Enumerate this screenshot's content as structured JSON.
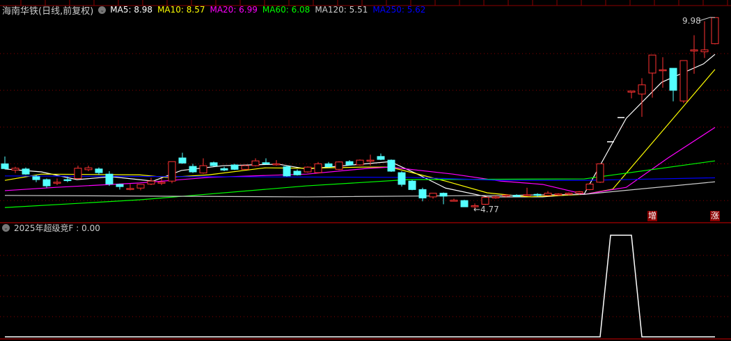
{
  "header": {
    "stock_name": "海南华铁(日线,前复权)",
    "ma": [
      {
        "label": "MA5: 8.98",
        "color": "#ffffff"
      },
      {
        "label": "MA10: 8.57",
        "color": "#ffff00"
      },
      {
        "label": "MA20: 6.99",
        "color": "#ff00ff"
      },
      {
        "label": "MA60: 6.08",
        "color": "#00ff00"
      },
      {
        "label": "MA120: 5.51",
        "color": "#cccccc"
      },
      {
        "label": "MA250: 5.62",
        "color": "#0000ff"
      }
    ]
  },
  "indicator": {
    "label": "2025年超级竞F : 0.00"
  },
  "markers": {
    "high_label": "9.98",
    "low_label": "←4.77",
    "tag_zeng": "增",
    "tag_zhang": "涨"
  },
  "colors": {
    "up": "#ff3232",
    "down": "#54ffff",
    "grid": "#8b0000",
    "flat": "#ffffff"
  },
  "chart_data": [
    {
      "type": "candlestick",
      "y_gridlines": [
        5,
        6,
        7,
        8,
        9
      ],
      "ohlc": [
        [
          6.0,
          6.2,
          5.85,
          5.87
        ],
        [
          5.83,
          5.92,
          5.75,
          5.88
        ],
        [
          5.86,
          5.9,
          5.7,
          5.72
        ],
        [
          5.65,
          5.7,
          5.5,
          5.57
        ],
        [
          5.57,
          5.6,
          5.35,
          5.4
        ],
        [
          5.5,
          5.6,
          5.42,
          5.5
        ],
        [
          5.57,
          5.65,
          5.5,
          5.56
        ],
        [
          5.6,
          5.95,
          5.58,
          5.88
        ],
        [
          5.84,
          5.95,
          5.8,
          5.89
        ],
        [
          5.86,
          5.9,
          5.7,
          5.76
        ],
        [
          5.72,
          5.8,
          5.4,
          5.45
        ],
        [
          5.44,
          5.46,
          5.3,
          5.38
        ],
        [
          5.31,
          5.45,
          5.28,
          5.33
        ],
        [
          5.34,
          5.45,
          5.28,
          5.44
        ],
        [
          5.45,
          5.62,
          5.42,
          5.53
        ],
        [
          5.5,
          5.6,
          5.42,
          5.5
        ],
        [
          5.53,
          6.06,
          5.47,
          6.06
        ],
        [
          6.16,
          6.3,
          6.0,
          6.02
        ],
        [
          5.93,
          6.0,
          5.75,
          5.78
        ],
        [
          5.75,
          6.15,
          5.73,
          5.95
        ],
        [
          6.03,
          6.06,
          5.93,
          5.95
        ],
        [
          5.87,
          5.92,
          5.8,
          5.83
        ],
        [
          5.97,
          6.0,
          5.83,
          5.85
        ],
        [
          5.85,
          5.97,
          5.83,
          5.95
        ],
        [
          5.95,
          6.15,
          5.93,
          6.08
        ],
        [
          6.03,
          6.15,
          5.98,
          6.0
        ],
        [
          6.0,
          6.1,
          5.95,
          6.0
        ],
        [
          5.92,
          5.95,
          5.65,
          5.67
        ],
        [
          5.8,
          5.85,
          5.68,
          5.7
        ],
        [
          5.78,
          5.93,
          5.76,
          5.91
        ],
        [
          5.76,
          6.05,
          5.74,
          6.0
        ],
        [
          6.0,
          6.05,
          5.9,
          5.92
        ],
        [
          5.85,
          6.07,
          5.83,
          6.05
        ],
        [
          6.06,
          6.1,
          5.95,
          5.97
        ],
        [
          5.97,
          6.12,
          5.95,
          6.1
        ],
        [
          6.09,
          6.25,
          5.95,
          6.1
        ],
        [
          6.2,
          6.28,
          6.1,
          6.12
        ],
        [
          6.1,
          6.12,
          5.78,
          5.8
        ],
        [
          5.76,
          5.8,
          5.38,
          5.44
        ],
        [
          5.53,
          5.56,
          5.28,
          5.3
        ],
        [
          5.3,
          5.35,
          4.98,
          5.07
        ],
        [
          5.1,
          5.2,
          5.05,
          5.2
        ],
        [
          5.2,
          5.22,
          4.9,
          5.12
        ],
        [
          5.0,
          5.05,
          4.98,
          5.01
        ],
        [
          5.0,
          5.02,
          4.83,
          4.83
        ],
        [
          4.84,
          4.92,
          4.77,
          4.86
        ],
        [
          4.9,
          5.09,
          4.88,
          5.09
        ],
        [
          5.1,
          5.14,
          5.05,
          5.1
        ],
        [
          5.12,
          5.18,
          5.08,
          5.15
        ],
        [
          5.14,
          5.17,
          5.1,
          5.12
        ],
        [
          5.15,
          5.35,
          5.12,
          5.16
        ],
        [
          5.17,
          5.2,
          5.1,
          5.15
        ],
        [
          5.14,
          5.26,
          5.12,
          5.2
        ],
        [
          5.17,
          5.2,
          5.13,
          5.18
        ],
        [
          5.18,
          5.22,
          5.14,
          5.2
        ],
        [
          5.2,
          5.26,
          5.16,
          5.24
        ],
        [
          5.3,
          5.48,
          5.28,
          5.45
        ],
        [
          5.5,
          6.0,
          5.48,
          6.0
        ],
        [
          6.6,
          6.6,
          6.6,
          6.6
        ],
        [
          7.26,
          7.26,
          7.26,
          7.26
        ],
        [
          7.98,
          7.98,
          7.78,
          7.98
        ],
        [
          7.9,
          8.33,
          7.28,
          8.15
        ],
        [
          8.47,
          8.96,
          7.8,
          8.96
        ],
        [
          8.55,
          8.9,
          8.07,
          8.56
        ],
        [
          8.6,
          8.6,
          7.7,
          8.0
        ],
        [
          7.71,
          8.81,
          7.65,
          8.81
        ],
        [
          9.1,
          9.5,
          8.45,
          9.1
        ],
        [
          9.05,
          9.88,
          8.88,
          9.1
        ],
        [
          9.27,
          9.98,
          9.25,
          9.98
        ]
      ],
      "ma_lines": [
        {
          "name": "MA5",
          "color": "#ffffff",
          "points": [
            [
              0,
              5.86
            ],
            [
              3.5,
              5.78
            ],
            [
              6.9,
              5.57
            ],
            [
              10.2,
              5.65
            ],
            [
              14.2,
              5.53
            ],
            [
              16.9,
              5.82
            ],
            [
              20.9,
              5.95
            ],
            [
              26.2,
              5.99
            ],
            [
              28.9,
              5.86
            ],
            [
              36.9,
              6.06
            ],
            [
              39.5,
              5.72
            ],
            [
              42.2,
              5.34
            ],
            [
              46.2,
              5.1
            ],
            [
              51.5,
              5.1
            ],
            [
              55.5,
              5.19
            ],
            [
              59.5,
              7.24
            ],
            [
              62.9,
              8.22
            ],
            [
              66.9,
              8.72
            ],
            [
              68,
              8.98
            ]
          ]
        },
        {
          "name": "MA10",
          "color": "#ffff00",
          "points": [
            [
              0,
              5.55
            ],
            [
              3.5,
              5.72
            ],
            [
              12.9,
              5.7
            ],
            [
              15.5,
              5.63
            ],
            [
              19.5,
              5.7
            ],
            [
              24.9,
              5.89
            ],
            [
              28.9,
              5.88
            ],
            [
              34.2,
              5.91
            ],
            [
              36.9,
              5.91
            ],
            [
              42.2,
              5.53
            ],
            [
              46.2,
              5.21
            ],
            [
              50.2,
              5.1
            ],
            [
              55.5,
              5.17
            ],
            [
              58.2,
              5.31
            ],
            [
              63.5,
              7.07
            ],
            [
              68,
              8.57
            ]
          ]
        },
        {
          "name": "MA20",
          "color": "#ff00ff",
          "points": [
            [
              0,
              5.27
            ],
            [
              4.9,
              5.36
            ],
            [
              12.9,
              5.48
            ],
            [
              19.5,
              5.63
            ],
            [
              28.9,
              5.72
            ],
            [
              34.9,
              5.88
            ],
            [
              36.9,
              5.91
            ],
            [
              42.9,
              5.72
            ],
            [
              47.5,
              5.53
            ],
            [
              51.5,
              5.44
            ],
            [
              55.5,
              5.17
            ],
            [
              59.5,
              5.36
            ],
            [
              63.5,
              6.16
            ],
            [
              68,
              6.99
            ]
          ]
        },
        {
          "name": "MA60",
          "color": "#00ff00",
          "points": [
            [
              0,
              4.81
            ],
            [
              12.9,
              5.02
            ],
            [
              28.9,
              5.4
            ],
            [
              38.6,
              5.57
            ],
            [
              55.5,
              5.59
            ],
            [
              68,
              6.08
            ]
          ]
        },
        {
          "name": "MA120",
          "color": "#cccccc",
          "points": [
            [
              0,
              5.14
            ],
            [
              28.9,
              5.1
            ],
            [
              47.5,
              5.14
            ],
            [
              55.5,
              5.17
            ],
            [
              68,
              5.51
            ]
          ]
        },
        {
          "name": "MA250",
          "color": "#0000ff",
          "points": [
            [
              0,
              5.67
            ],
            [
              38.9,
              5.63
            ],
            [
              47.5,
              5.55
            ],
            [
              55.5,
              5.55
            ],
            [
              68,
              5.62
            ]
          ]
        }
      ]
    },
    {
      "type": "line",
      "name": "2025年超级竞F",
      "values": [
        0,
        0,
        0,
        0,
        0,
        0,
        0,
        0,
        0,
        0,
        0,
        0,
        0,
        0,
        0,
        0,
        0,
        0,
        0,
        0,
        0,
        0,
        0,
        0,
        0,
        0,
        0,
        0,
        0,
        0,
        0,
        0,
        0,
        0,
        0,
        0,
        0,
        0,
        0,
        0,
        0,
        0,
        0,
        0,
        0,
        0,
        0,
        0,
        0,
        0,
        0,
        0,
        0,
        0,
        0,
        0,
        0,
        0,
        1,
        1,
        1,
        0,
        0,
        0,
        0,
        0,
        0,
        0,
        0
      ]
    }
  ]
}
